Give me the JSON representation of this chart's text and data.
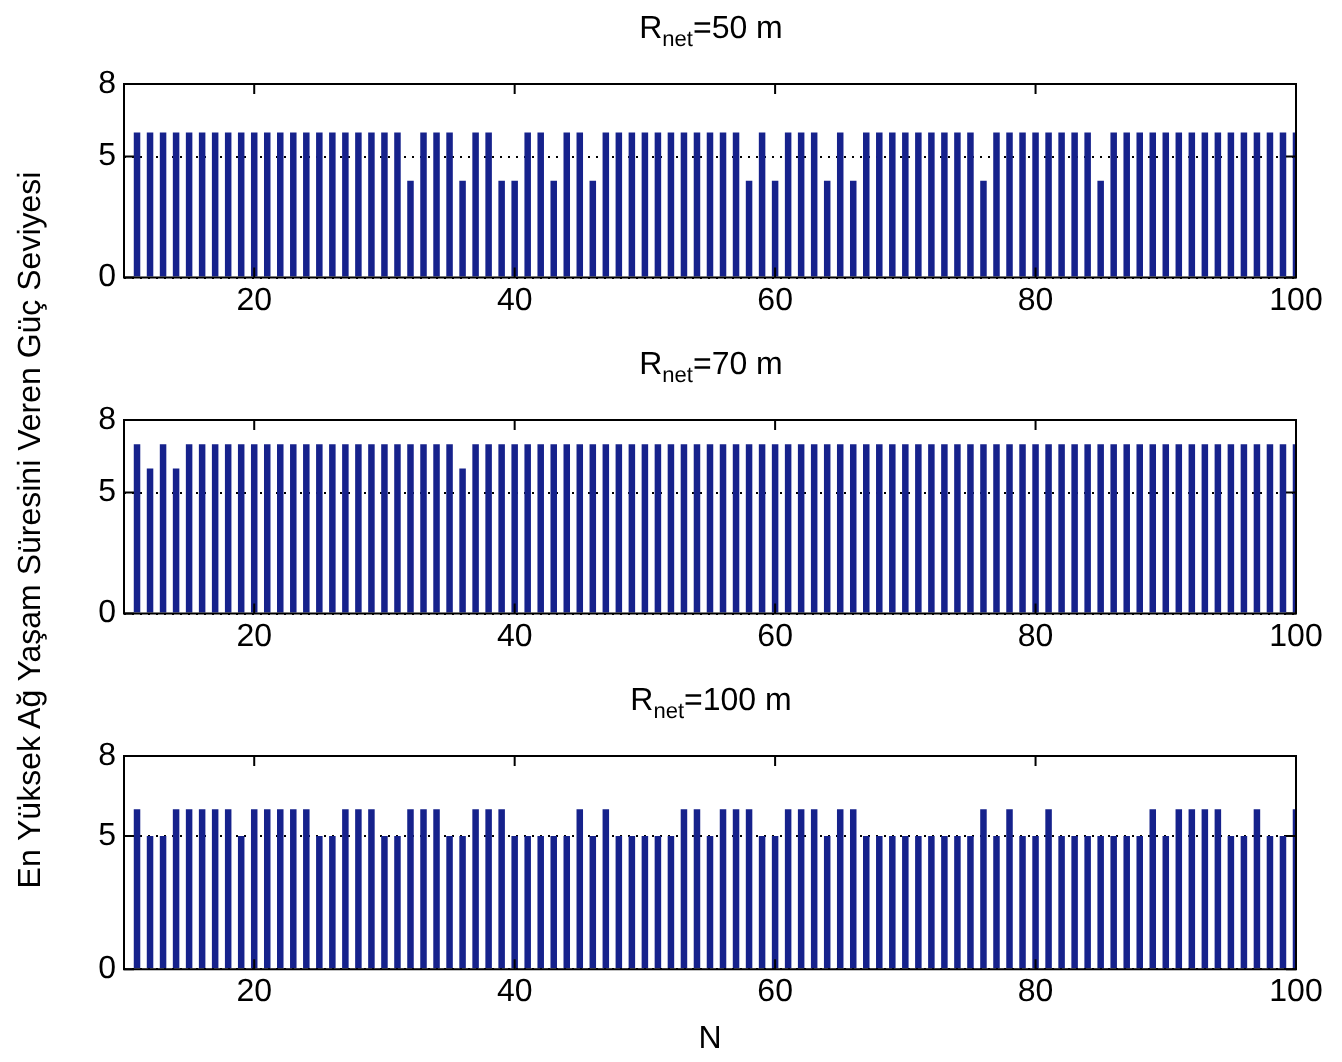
{
  "chart_data": [
    {
      "type": "bar",
      "title": "R$_{net}$=50 m",
      "color": "#16228c",
      "xlim": [
        10,
        100
      ],
      "xticks": [
        20,
        40,
        60,
        80,
        100
      ],
      "ylim": [
        0,
        8
      ],
      "yticks": [
        0,
        5,
        8
      ],
      "grid": "y",
      "x": [
        11,
        12,
        13,
        14,
        15,
        16,
        17,
        18,
        19,
        20,
        21,
        22,
        23,
        24,
        25,
        26,
        27,
        28,
        29,
        30,
        31,
        32,
        33,
        34,
        35,
        36,
        37,
        38,
        39,
        40,
        41,
        42,
        43,
        44,
        45,
        46,
        47,
        48,
        49,
        50,
        51,
        52,
        53,
        54,
        55,
        56,
        57,
        58,
        59,
        60,
        61,
        62,
        63,
        64,
        65,
        66,
        67,
        68,
        69,
        70,
        71,
        72,
        73,
        74,
        75,
        76,
        77,
        78,
        79,
        80,
        81,
        82,
        83,
        84,
        85,
        86,
        87,
        88,
        89,
        90,
        91,
        92,
        93,
        94,
        95,
        96,
        97,
        98,
        99,
        100
      ],
      "values": [
        6,
        6,
        6,
        6,
        6,
        6,
        6,
        6,
        6,
        6,
        6,
        6,
        6,
        6,
        6,
        6,
        6,
        6,
        6,
        6,
        6,
        4,
        6,
        6,
        6,
        4,
        6,
        6,
        4,
        4,
        6,
        6,
        4,
        6,
        6,
        4,
        6,
        6,
        6,
        6,
        6,
        6,
        6,
        6,
        6,
        6,
        6,
        4,
        6,
        4,
        6,
        6,
        6,
        4,
        6,
        4,
        6,
        6,
        6,
        6,
        6,
        6,
        6,
        6,
        6,
        4,
        6,
        6,
        6,
        6,
        6,
        6,
        6,
        6,
        4,
        6,
        6,
        6,
        6,
        6,
        6,
        6,
        6,
        6,
        6,
        6,
        6,
        6,
        6,
        6
      ]
    },
    {
      "type": "bar",
      "title": "R$_{net}$=70 m",
      "ylabel": "En Yüksek Ağ Yaşam Süresini Veren Güç Seviyesi",
      "color": "#16228c",
      "xlim": [
        10,
        100
      ],
      "xticks": [
        20,
        40,
        60,
        80,
        100
      ],
      "ylim": [
        0,
        8
      ],
      "yticks": [
        0,
        5,
        8
      ],
      "grid": "y",
      "x": [
        11,
        12,
        13,
        14,
        15,
        16,
        17,
        18,
        19,
        20,
        21,
        22,
        23,
        24,
        25,
        26,
        27,
        28,
        29,
        30,
        31,
        32,
        33,
        34,
        35,
        36,
        37,
        38,
        39,
        40,
        41,
        42,
        43,
        44,
        45,
        46,
        47,
        48,
        49,
        50,
        51,
        52,
        53,
        54,
        55,
        56,
        57,
        58,
        59,
        60,
        61,
        62,
        63,
        64,
        65,
        66,
        67,
        68,
        69,
        70,
        71,
        72,
        73,
        74,
        75,
        76,
        77,
        78,
        79,
        80,
        81,
        82,
        83,
        84,
        85,
        86,
        87,
        88,
        89,
        90,
        91,
        92,
        93,
        94,
        95,
        96,
        97,
        98,
        99,
        100
      ],
      "values": [
        7,
        6,
        7,
        6,
        7,
        7,
        7,
        7,
        7,
        7,
        7,
        7,
        7,
        7,
        7,
        7,
        7,
        7,
        7,
        7,
        7,
        7,
        7,
        7,
        7,
        6,
        7,
        7,
        7,
        7,
        7,
        7,
        7,
        7,
        7,
        7,
        7,
        7,
        7,
        7,
        7,
        7,
        7,
        7,
        7,
        7,
        7,
        7,
        7,
        7,
        7,
        7,
        7,
        7,
        7,
        7,
        7,
        7,
        7,
        7,
        7,
        7,
        7,
        7,
        7,
        7,
        7,
        7,
        7,
        7,
        7,
        7,
        7,
        7,
        7,
        7,
        7,
        7,
        7,
        7,
        7,
        7,
        7,
        7,
        7,
        7,
        7,
        7,
        7,
        7
      ]
    },
    {
      "type": "bar",
      "title": "R$_{net}$=100 m",
      "xlabel": "N",
      "color": "#16228c",
      "xlim": [
        10,
        100
      ],
      "xticks": [
        20,
        40,
        60,
        80,
        100
      ],
      "ylim": [
        0,
        8
      ],
      "yticks": [
        0,
        5,
        8
      ],
      "grid": "y",
      "x": [
        11,
        12,
        13,
        14,
        15,
        16,
        17,
        18,
        19,
        20,
        21,
        22,
        23,
        24,
        25,
        26,
        27,
        28,
        29,
        30,
        31,
        32,
        33,
        34,
        35,
        36,
        37,
        38,
        39,
        40,
        41,
        42,
        43,
        44,
        45,
        46,
        47,
        48,
        49,
        50,
        51,
        52,
        53,
        54,
        55,
        56,
        57,
        58,
        59,
        60,
        61,
        62,
        63,
        64,
        65,
        66,
        67,
        68,
        69,
        70,
        71,
        72,
        73,
        74,
        75,
        76,
        77,
        78,
        79,
        80,
        81,
        82,
        83,
        84,
        85,
        86,
        87,
        88,
        89,
        90,
        91,
        92,
        93,
        94,
        95,
        96,
        97,
        98,
        99,
        100
      ],
      "values": [
        6,
        5,
        5,
        6,
        6,
        6,
        6,
        6,
        5,
        6,
        6,
        6,
        6,
        6,
        5,
        5,
        6,
        6,
        6,
        5,
        5,
        6,
        6,
        6,
        5,
        5,
        6,
        6,
        6,
        5,
        5,
        5,
        5,
        5,
        6,
        5,
        6,
        5,
        5,
        5,
        5,
        5,
        6,
        6,
        5,
        6,
        6,
        6,
        5,
        5,
        6,
        6,
        6,
        5,
        6,
        6,
        5,
        5,
        5,
        5,
        5,
        5,
        5,
        5,
        5,
        6,
        5,
        6,
        5,
        5,
        6,
        5,
        5,
        5,
        5,
        5,
        5,
        5,
        6,
        5,
        6,
        6,
        6,
        6,
        5,
        5,
        6,
        5,
        5,
        6
      ]
    }
  ]
}
